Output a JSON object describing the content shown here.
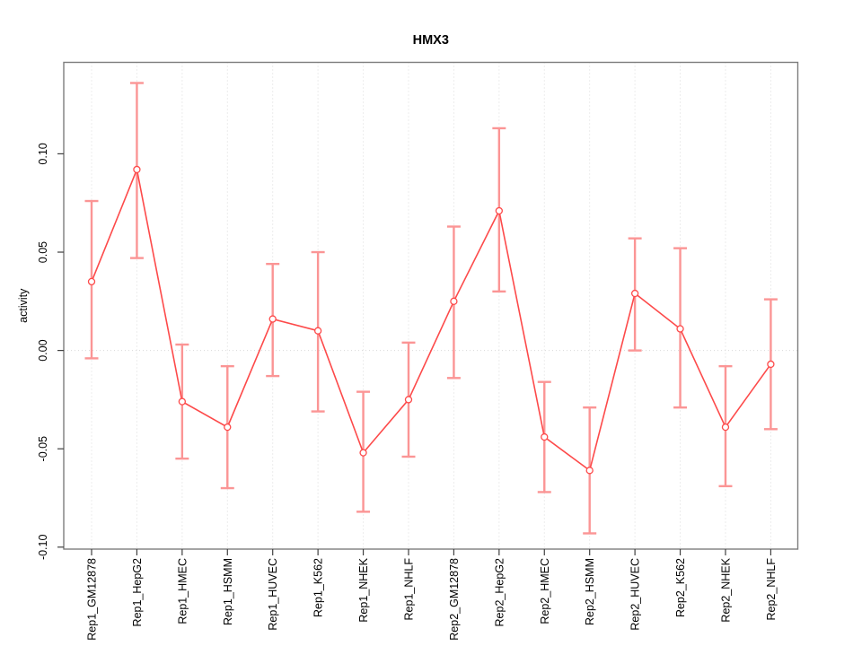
{
  "title": "HMX3",
  "chart_data": {
    "type": "line",
    "title": "HMX3",
    "xlabel": "",
    "ylabel": "activity",
    "legend": "none",
    "grid": {
      "vertical_dotted_per_category": true,
      "horizontal_zero_line_dotted": true
    },
    "ylim": [
      -0.101,
      0.1465
    ],
    "yticks": [
      {
        "label": "-0.10",
        "value": -0.1
      },
      {
        "label": "-0.05",
        "value": -0.05
      },
      {
        "label": "0.00",
        "value": 0.0
      },
      {
        "label": "0.05",
        "value": 0.05
      },
      {
        "label": "0.10",
        "value": 0.1
      }
    ],
    "categories": [
      "Rep1_GM12878",
      "Rep1_HepG2",
      "Rep1_HMEC",
      "Rep1_HSMM",
      "Rep1_HUVEC",
      "Rep1_K562",
      "Rep1_NHEK",
      "Rep1_NHLF",
      "Rep2_GM12878",
      "Rep2_HepG2",
      "Rep2_HMEC",
      "Rep2_HSMM",
      "Rep2_HUVEC",
      "Rep2_K562",
      "Rep2_NHEK",
      "Rep2_NHLF"
    ],
    "series": [
      {
        "name": "activity",
        "marker": "open-circle",
        "values": [
          0.035,
          0.092,
          -0.026,
          -0.039,
          0.016,
          0.01,
          -0.052,
          -0.025,
          0.025,
          0.071,
          -0.044,
          -0.061,
          0.029,
          0.011,
          -0.039,
          -0.007
        ],
        "lower": [
          -0.004,
          0.047,
          -0.055,
          -0.07,
          -0.013,
          -0.031,
          -0.082,
          -0.054,
          -0.014,
          0.03,
          -0.072,
          -0.093,
          0.0,
          -0.029,
          -0.069,
          -0.04
        ],
        "upper": [
          0.076,
          0.136,
          0.003,
          -0.008,
          0.044,
          0.05,
          -0.021,
          0.004,
          0.063,
          0.113,
          -0.016,
          -0.029,
          0.057,
          0.052,
          -0.008,
          0.026
        ]
      }
    ],
    "colors": {
      "line": "#fd4a4a",
      "marker": "#fd4a4a",
      "error_bar": "#fb9595",
      "grid": "#dadada",
      "box": "#7d7d7d",
      "tick": "#404040",
      "text": "#000000",
      "background": "#ffffff"
    }
  }
}
